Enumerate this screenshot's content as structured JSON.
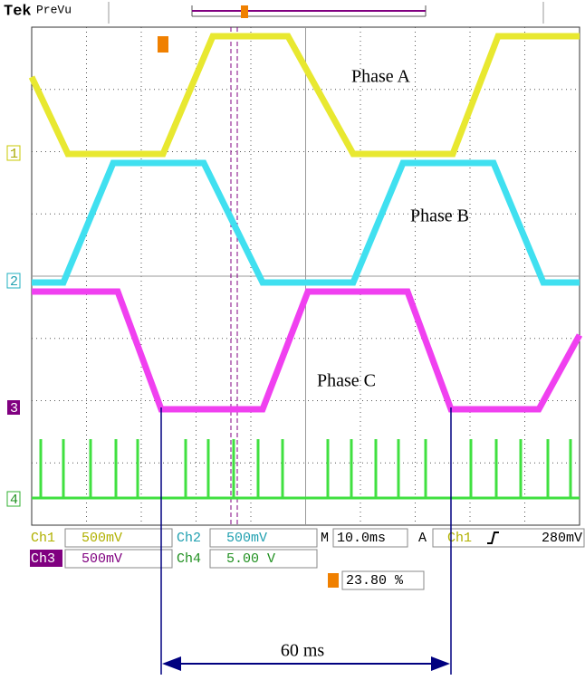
{
  "header": {
    "brand": "Tek",
    "mode": "PreVu"
  },
  "traces": [
    {
      "label": "Phase A",
      "marker": "1"
    },
    {
      "label": "Phase B",
      "marker": "2"
    },
    {
      "label": "Phase C",
      "marker": "3"
    },
    {
      "marker": "4"
    }
  ],
  "status": {
    "ch1": {
      "name": "Ch1",
      "scale": "500mV"
    },
    "ch2": {
      "name": "Ch2",
      "scale": "500mV"
    },
    "ch3": {
      "name": "Ch3",
      "scale": "500mV"
    },
    "ch4": {
      "name": "Ch4",
      "scale": "5.00 V"
    },
    "timebase": {
      "name": "M",
      "value": "10.0ms"
    },
    "trigger": {
      "mode": "A",
      "source": "Ch1",
      "level": "280mV"
    },
    "position": "23.80 %"
  },
  "annotation": "60 ms"
}
